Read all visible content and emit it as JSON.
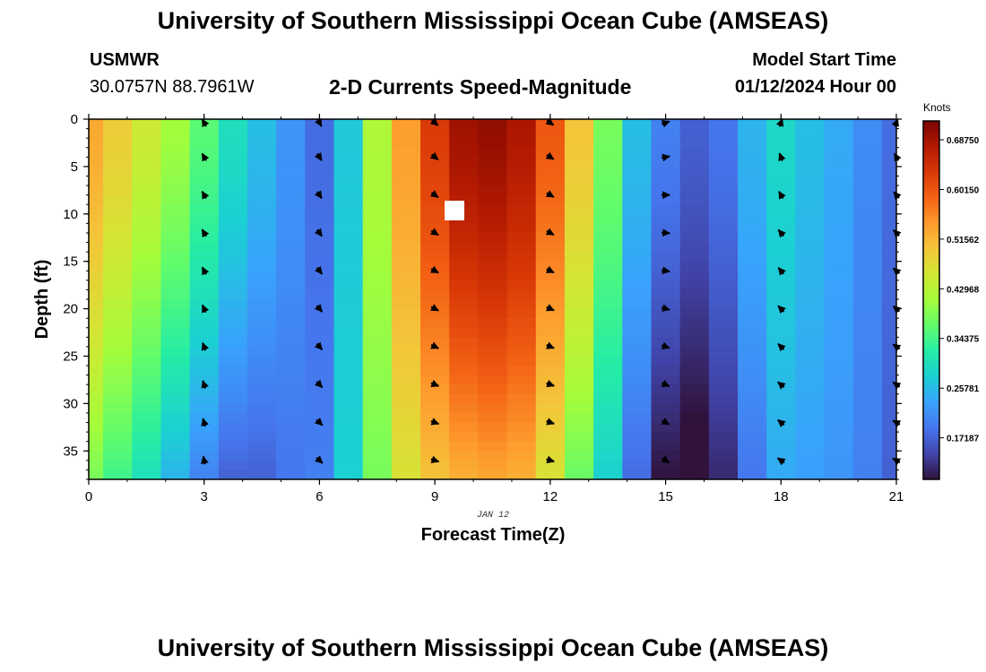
{
  "header": {
    "title": "University of Southern Mississippi Ocean Cube (AMSEAS)",
    "station_id": "USMWR",
    "station_coords": "30.0757N  88.7961W",
    "chart_title": "2-D Currents Speed-Magnitude",
    "model_start_label": "Model Start Time",
    "model_start_value": "01/12/2024 Hour 00"
  },
  "footer": {
    "title": "University of Southern Mississippi Ocean Cube (AMSEAS)"
  },
  "chart_data": {
    "type": "heatmap",
    "title": "2-D Currents Speed-Magnitude",
    "xlabel": "Forecast Time(Z)",
    "ylabel": "Depth (ft)",
    "date_label": "JAN 12",
    "xlim": [
      0,
      21
    ],
    "ylim": [
      0,
      38
    ],
    "y_inverted": true,
    "x_ticks": [
      0,
      3,
      6,
      9,
      12,
      15,
      18,
      21
    ],
    "x_tick_labels": [
      "0",
      "3",
      "6",
      "9",
      "12",
      "15",
      "18",
      "21"
    ],
    "y_ticks": [
      0,
      5,
      10,
      15,
      20,
      25,
      30,
      35
    ],
    "y_tick_labels": [
      "0",
      "5",
      "10",
      "15",
      "20",
      "25",
      "30",
      "35"
    ],
    "colorbar": {
      "label": "Knots",
      "range": [
        0.1,
        0.72
      ],
      "ticks": [
        0.17187,
        0.25781,
        0.34375,
        0.42968,
        0.51562,
        0.6015,
        0.6875
      ],
      "tick_labels": [
        "0.17187",
        "0.25781",
        "0.34375",
        "0.42968",
        "0.51562",
        "0.60150",
        "0.68750"
      ],
      "colors": [
        "#30123b",
        "#4145ab",
        "#4675ed",
        "#39a2fc",
        "#1bcfd4",
        "#24eca6",
        "#61fc6c",
        "#a4fc3b",
        "#d1e834",
        "#f3c63a",
        "#fe9b2d",
        "#f36315",
        "#d93806",
        "#b11901",
        "#7a0402"
      ]
    },
    "time_columns": [
      0,
      0.75,
      1.5,
      2.25,
      3,
      3.75,
      4.5,
      5.25,
      6,
      6.75,
      7.5,
      8.25,
      9,
      9.75,
      10.5,
      11.25,
      12,
      12.75,
      13.5,
      14.25,
      15,
      15.75,
      16.5,
      17.25,
      18,
      18.75,
      19.5,
      20.25,
      21
    ],
    "speed_top": [
      0.53,
      0.49,
      0.45,
      0.41,
      0.36,
      0.3,
      0.26,
      0.22,
      0.18,
      0.27,
      0.42,
      0.54,
      0.63,
      0.69,
      0.7,
      0.68,
      0.6,
      0.5,
      0.38,
      0.26,
      0.2,
      0.17,
      0.19,
      0.25,
      0.29,
      0.26,
      0.24,
      0.21,
      0.18
    ],
    "speed_bottom": [
      0.38,
      0.34,
      0.3,
      0.25,
      0.2,
      0.17,
      0.17,
      0.19,
      0.2,
      0.28,
      0.38,
      0.46,
      0.5,
      0.52,
      0.53,
      0.52,
      0.46,
      0.37,
      0.28,
      0.18,
      0.1,
      0.08,
      0.12,
      0.19,
      0.24,
      0.23,
      0.22,
      0.2,
      0.17
    ],
    "vectors": {
      "times": [
        3,
        6,
        9,
        12,
        15,
        18,
        21
      ],
      "depths": [
        0,
        4,
        8,
        12,
        16,
        20,
        24,
        28,
        32,
        36
      ],
      "direction_deg": [
        [
          330,
          330,
          330,
          330,
          333,
          336,
          339,
          342,
          345,
          348
        ],
        [
          150,
          148,
          146,
          144,
          142,
          140,
          138,
          136,
          134,
          132
        ],
        [
          130,
          128,
          125,
          122,
          120,
          118,
          115,
          112,
          110,
          108
        ],
        [
          125,
          122,
          120,
          118,
          116,
          114,
          112,
          110,
          108,
          106
        ],
        [
          70,
          80,
          90,
          95,
          100,
          105,
          110,
          115,
          120,
          125
        ],
        [
          20,
          340,
          330,
          320,
          320,
          315,
          315,
          310,
          310,
          305
        ],
        [
          20,
          330,
          320,
          315,
          310,
          310,
          305,
          305,
          300,
          300
        ]
      ]
    }
  }
}
